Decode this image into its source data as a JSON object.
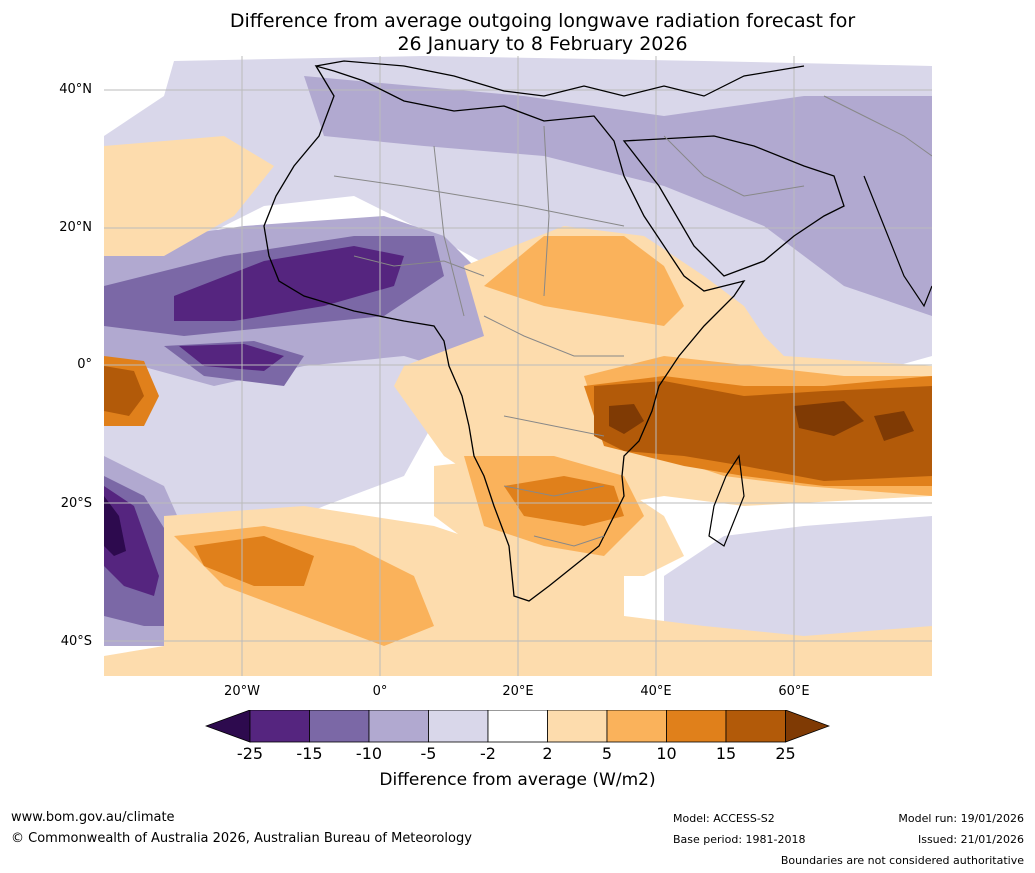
{
  "title": {
    "line1": "Difference from average outgoing longwave radiation forecast for",
    "line2": "26 January to 8 February 2026"
  },
  "map": {
    "lat_labels": [
      "40°N",
      "20°N",
      "0°",
      "20°S",
      "40°S"
    ],
    "lon_labels": [
      "20°W",
      "0°",
      "20°E",
      "40°E",
      "60°E"
    ]
  },
  "colorbar": {
    "ticks": [
      "-25",
      "-15",
      "-10",
      "-5",
      "-2",
      "2",
      "5",
      "10",
      "15",
      "25"
    ],
    "colors": [
      "#2d0a4e",
      "#55257f",
      "#7b68a6",
      "#b1a9d0",
      "#d9d7ea",
      "#ffffff",
      "#fddcad",
      "#fab25b",
      "#e0801b",
      "#b25a09",
      "#7f3a04"
    ],
    "label": "Difference from average (W/m2)"
  },
  "footer": {
    "url": "www.bom.gov.au/climate",
    "copyright": "© Commonwealth of Australia 2026, Australian Bureau of Meteorology",
    "model": "Model: ACCESS-S2",
    "base_period": "Base period: 1981-2018",
    "model_run": "Model run: 19/01/2026",
    "issued": "Issued: 21/01/2026",
    "boundaries": "Boundaries are not considered authoritative"
  }
}
